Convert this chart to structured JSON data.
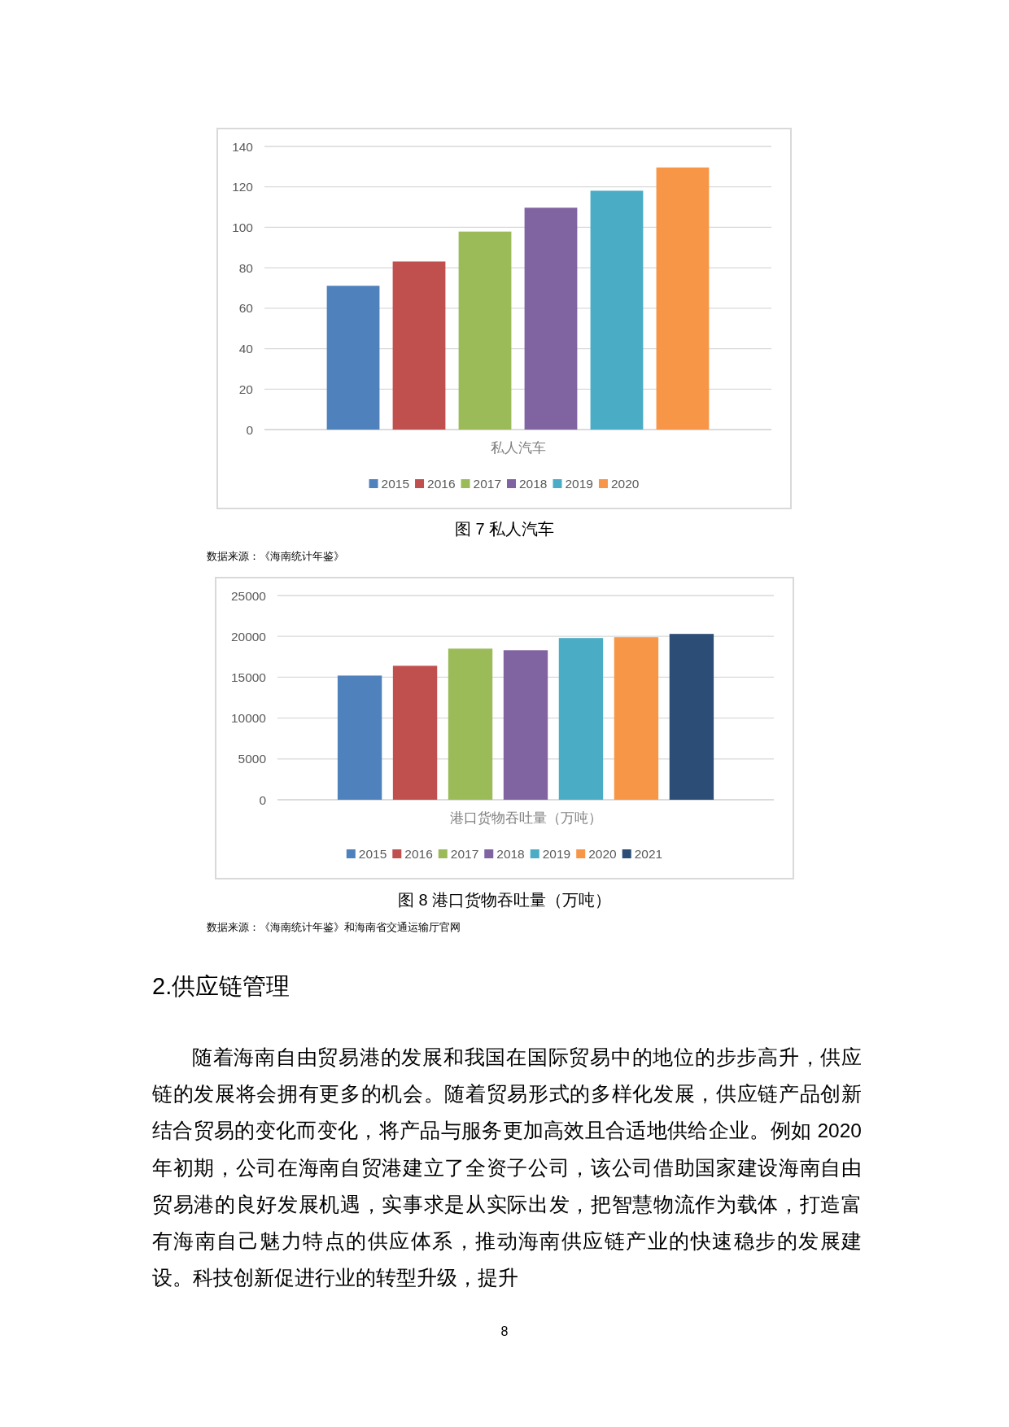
{
  "chart_data": [
    {
      "type": "bar",
      "title": "图 7 私人汽车",
      "categories": [
        "私人汽车"
      ],
      "series": [
        {
          "name": "2015",
          "color": "#4f81bd",
          "values": [
            71.1
          ]
        },
        {
          "name": "2016",
          "color": "#c0504d",
          "values": [
            83.1
          ]
        },
        {
          "name": "2017",
          "color": "#9bbb59",
          "values": [
            97.9
          ]
        },
        {
          "name": "2018",
          "color": "#8064a2",
          "values": [
            109.7
          ]
        },
        {
          "name": "2019",
          "color": "#4bacc6",
          "values": [
            118.1
          ]
        },
        {
          "name": "2020",
          "color": "#f79646",
          "values": [
            129.6
          ]
        }
      ],
      "ylim": [
        0,
        140
      ],
      "yticks": [
        0,
        20,
        40,
        60,
        80,
        100,
        120,
        140
      ],
      "grid": "y",
      "legend": "bottom",
      "annotations": [
        "数据来源：《海南统计年鉴》"
      ]
    },
    {
      "type": "bar",
      "title": "图 8 港口货物吞吐量（万吨）",
      "categories": [
        "港口货物吞吐量（万吨）"
      ],
      "series": [
        {
          "name": "2015",
          "color": "#4f81bd",
          "values": [
            15200
          ]
        },
        {
          "name": "2016",
          "color": "#c0504d",
          "values": [
            16400
          ]
        },
        {
          "name": "2017",
          "color": "#9bbb59",
          "values": [
            18500
          ]
        },
        {
          "name": "2018",
          "color": "#8064a2",
          "values": [
            18300
          ]
        },
        {
          "name": "2019",
          "color": "#4bacc6",
          "values": [
            19800
          ]
        },
        {
          "name": "2020",
          "color": "#f79646",
          "values": [
            19900
          ]
        },
        {
          "name": "2021",
          "color": "#2c4d75",
          "values": [
            20300
          ]
        }
      ],
      "ylim": [
        0,
        25000
      ],
      "yticks": [
        0,
        5000,
        10000,
        15000,
        20000,
        25000
      ],
      "grid": "y",
      "legend": "bottom",
      "annotations": [
        "数据来源：《海南统计年鉴》和海南省交通运输厅官网",
        "2.供应链管理",
        "随着海南自由贸易港的发展和我国在国际贸易中的地位的步步高升，供应链的发展将会拥有更多的机会。随着贸易形式的多样化发展，供应链产品创新结合贸易的变化而变化，将产品与服务更加高效且合适地供给企业。例如 2020 年初期，公司在海南自贸港建立了全资子公司，该公司借助国家建设海南自由贸易港的良好发展机遇，实事求是从实际出发，把智慧物流作为载体，打造富有海南自己魅力特点的供应体系，推动海南供应链产业的快速稳步的发展建设。科技创新促进行业的转型升级，提升",
        "8"
      ]
    }
  ]
}
